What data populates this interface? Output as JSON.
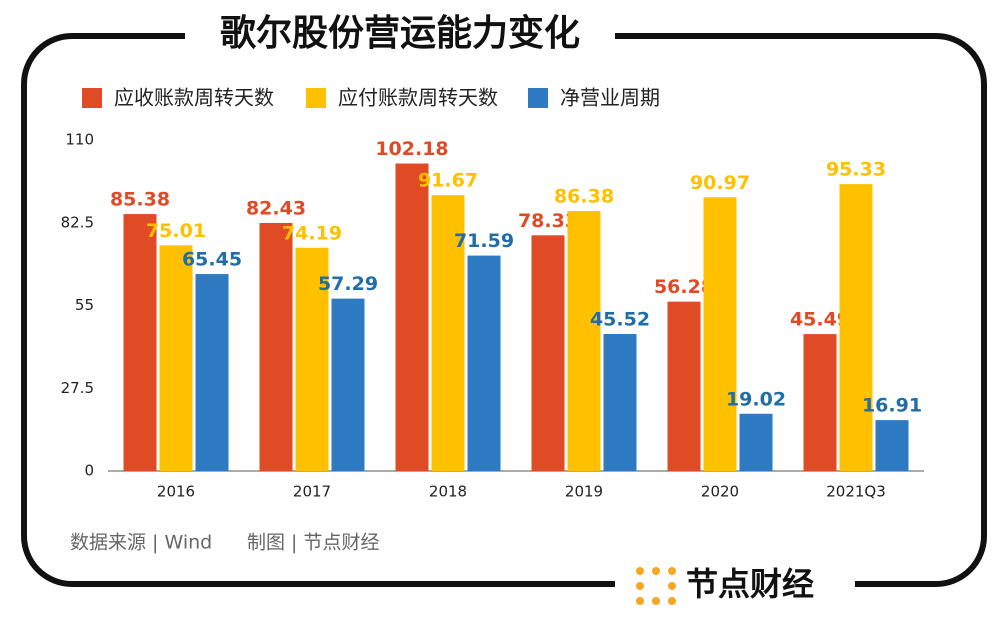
{
  "chart_data": {
    "type": "bar",
    "title": "歌尔股份营运能力变化",
    "categories": [
      "2016",
      "2017",
      "2018",
      "2019",
      "2020",
      "2021Q3"
    ],
    "series": [
      {
        "name": "应收账款周转天数",
        "color": "#e04a25",
        "values": [
          85.38,
          82.43,
          102.18,
          78.33,
          56.28,
          45.49
        ]
      },
      {
        "name": "应付账款周转天数",
        "color": "#ffc000",
        "values": [
          75.01,
          74.19,
          91.67,
          86.38,
          90.97,
          95.33
        ]
      },
      {
        "name": "净营业周期",
        "color": "#2e7bc4",
        "values": [
          65.45,
          57.29,
          71.59,
          45.52,
          19.02,
          16.91
        ]
      }
    ],
    "ylim": [
      0,
      110
    ],
    "yticks": [
      0,
      27.5,
      55,
      82.5,
      110
    ],
    "grid": false,
    "source": "数据来源 | Wind",
    "credit": "制图 | 节点财经",
    "brand": "节点财经"
  }
}
